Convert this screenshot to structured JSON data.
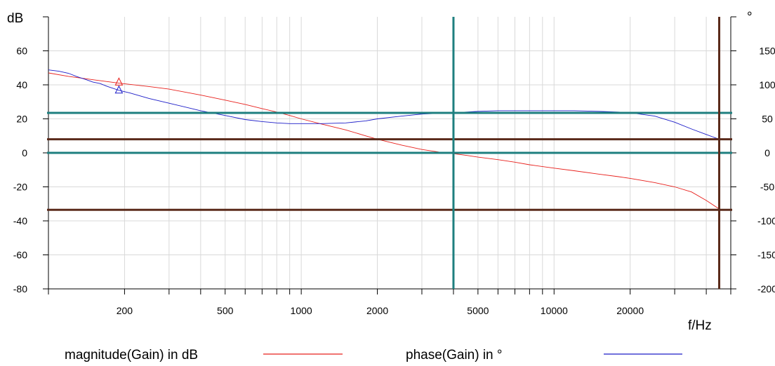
{
  "chart_data": {
    "type": "line",
    "title": "",
    "xlabel": "f/Hz",
    "ylabel_left": "dB",
    "ylabel_right": "°",
    "x_scale": "log",
    "xlim": [
      100,
      50000
    ],
    "ylim_left": [
      -80,
      80
    ],
    "ylim_right": [
      -200,
      200
    ],
    "x_ticks": [
      200,
      500,
      1000,
      2000,
      5000,
      10000,
      20000
    ],
    "x_tick_labels": [
      "200",
      "500",
      "1000",
      "2000",
      "5000",
      "10000",
      "20000"
    ],
    "x_minor_ticks": [
      100,
      300,
      400,
      600,
      700,
      800,
      900,
      3000,
      4000,
      6000,
      7000,
      8000,
      9000,
      30000,
      40000,
      50000
    ],
    "y_ticks_left": [
      60,
      40,
      20,
      0,
      -20,
      -40,
      -60,
      -80
    ],
    "y_tick_labels_left": [
      "60",
      "40",
      "20",
      "0",
      "-20",
      "-40",
      "-60",
      "-80"
    ],
    "y_ticks_right": [
      150,
      100,
      50,
      0,
      -50,
      -100,
      -150,
      -200
    ],
    "y_tick_labels_right": [
      "150",
      "100",
      "50",
      "0",
      "-50",
      "-100",
      "-150",
      "-200"
    ],
    "grid": true,
    "legend_placement": "bottom",
    "series": [
      {
        "name": "magnitude(Gain) in dB",
        "axis": "left",
        "color": "#e8201c",
        "x": [
          100,
          120,
          150,
          190,
          250,
          300,
          400,
          500,
          600,
          700,
          800,
          900,
          1000,
          1200,
          1500,
          1800,
          2000,
          2500,
          3000,
          3500,
          4000,
          4500,
          5000,
          6000,
          7000,
          8000,
          10000,
          12000,
          15000,
          18000,
          20000,
          25000,
          30000,
          35000,
          40000,
          45000
        ],
        "values": [
          47,
          45,
          43,
          41,
          39,
          37.5,
          34,
          31,
          28.5,
          26,
          24,
          22,
          20,
          17,
          13.5,
          10,
          8,
          4.5,
          2,
          0.5,
          -0.5,
          -1.5,
          -2.5,
          -4,
          -5.5,
          -7,
          -9,
          -10.5,
          -12.5,
          -14,
          -15,
          -17.5,
          -20,
          -23,
          -28,
          -33
        ]
      },
      {
        "name": "phase(Gain) in °",
        "axis": "right",
        "color": "#1c1cc8",
        "x": [
          100,
          110,
          120,
          130,
          140,
          150,
          160,
          170,
          190,
          210,
          250,
          300,
          400,
          500,
          600,
          700,
          800,
          900,
          1000,
          1200,
          1500,
          1800,
          2000,
          2500,
          3000,
          3500,
          4000,
          5000,
          6000,
          7000,
          8000,
          10000,
          12000,
          15000,
          18000,
          20000,
          25000,
          30000,
          35000,
          40000,
          45000
        ],
        "values": [
          122,
          120,
          117,
          112,
          108,
          104,
          102,
          98,
          92,
          88,
          80,
          73,
          62,
          55,
          49,
          46,
          44,
          43,
          43,
          43,
          44,
          47,
          50,
          54,
          57,
          58,
          59,
          61,
          62,
          62,
          62,
          62,
          62,
          61,
          60,
          59,
          54,
          45,
          35,
          27,
          20
        ]
      }
    ],
    "markers": [
      {
        "series": "magnitude(Gain) in dB",
        "shape": "triangle",
        "x": 190,
        "value": 41.5
      },
      {
        "series": "phase(Gain) in °",
        "shape": "triangle",
        "x": 190,
        "value": 92
      }
    ],
    "reference_lines": [
      {
        "orientation": "horizontal",
        "axis": "left",
        "value": 23.5,
        "color": "#1e7f7f"
      },
      {
        "orientation": "horizontal",
        "axis": "left",
        "value": 0,
        "color": "#1e7f7f"
      },
      {
        "orientation": "horizontal",
        "axis": "left",
        "value": 8,
        "color": "#5a2a1a"
      },
      {
        "orientation": "horizontal",
        "axis": "left",
        "value": -33.5,
        "color": "#5a2a1a"
      },
      {
        "orientation": "vertical",
        "value": 4000,
        "color": "#1e7f7f"
      },
      {
        "orientation": "vertical",
        "value": 45000,
        "color": "#5a2a1a"
      }
    ]
  }
}
